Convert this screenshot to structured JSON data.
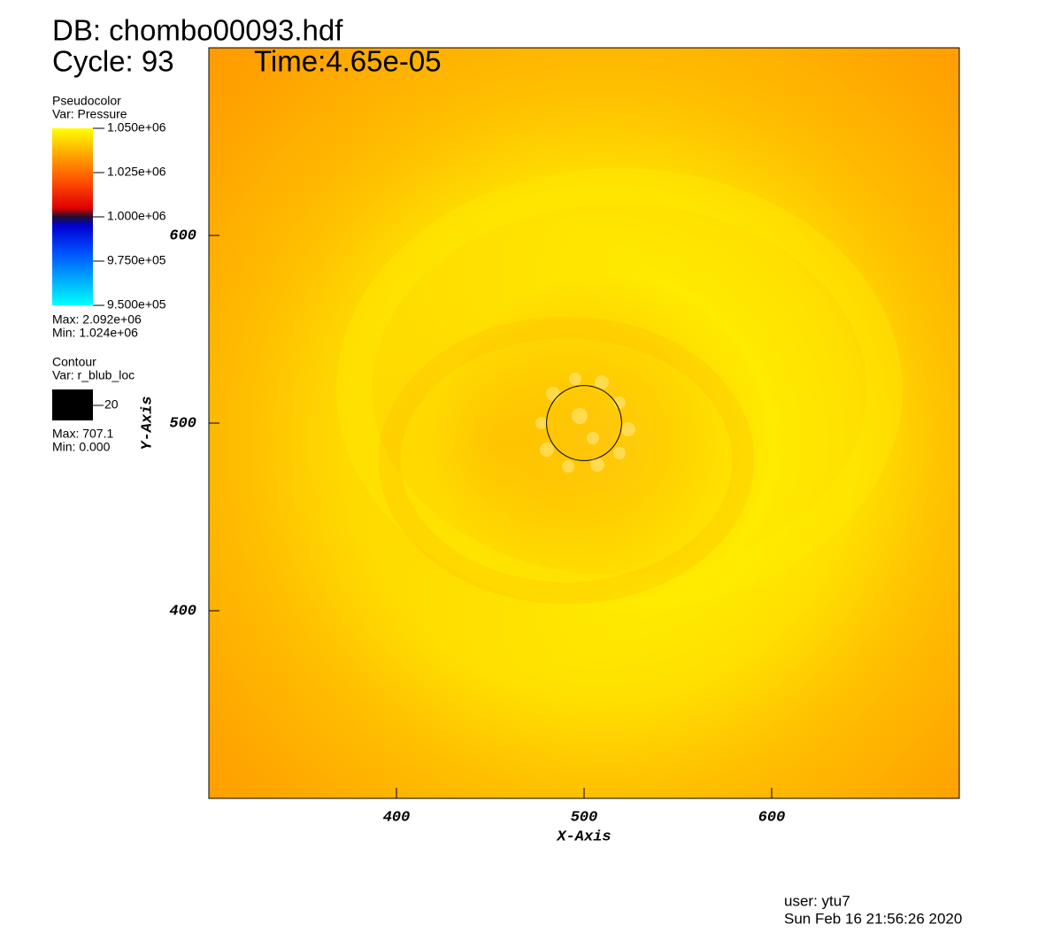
{
  "chart_data": {
    "type": "pseudocolor",
    "title": "DB: chombo00093.hdf",
    "cycle_label": "Cycle: 93",
    "time_label": "Time:4.65e-05",
    "xlabel": "X-Axis",
    "ylabel": "Y-Axis",
    "xlim": [
      300,
      700
    ],
    "ylim": [
      300,
      700
    ],
    "xticks": [
      400,
      500,
      600
    ],
    "yticks": [
      400,
      500,
      600
    ],
    "pseudocolor": {
      "plot": "Pseudocolor",
      "var": "Var: Pressure",
      "range": [
        950000,
        1050000
      ],
      "ticks": [
        {
          "value": 1050000,
          "label": "1.050e+06"
        },
        {
          "value": 1025000,
          "label": "1.025e+06"
        },
        {
          "value": 1000000,
          "label": "1.000e+06"
        },
        {
          "value": 975000,
          "label": "9.750e+05"
        },
        {
          "value": 950000,
          "label": "9.500e+05"
        }
      ],
      "max_label": "Max: 2.092e+06",
      "min_label": "Min:  1.024e+06"
    },
    "contour": {
      "plot": "Contour",
      "var": "Var: r_blub_loc",
      "level": 20,
      "color": "#000000",
      "center": [
        500,
        500
      ],
      "max_label": "Max: 707.1",
      "min_label": "Min: 0.000"
    },
    "user": "user: ytu7",
    "date": "Sun Feb 16 21:56:26 2020"
  }
}
